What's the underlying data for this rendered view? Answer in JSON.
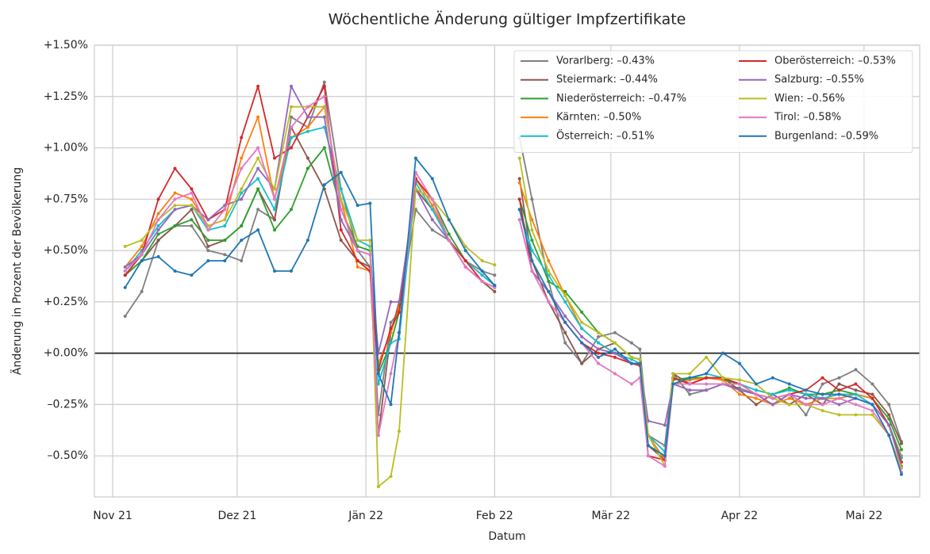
{
  "chart_data": {
    "type": "line",
    "title": "Wöchentliche Änderung gültiger Impfzertifikate",
    "xlabel": "Datum",
    "ylabel": "Änderung in Prozent der Bevölkerung",
    "x": [
      3,
      7,
      11,
      15,
      19,
      23,
      27,
      31,
      35,
      39,
      43,
      47,
      51,
      55,
      59,
      62,
      64,
      67,
      69,
      73,
      77,
      81,
      85,
      89,
      92,
      95,
      98,
      101,
      105,
      109,
      113,
      117,
      121,
      125,
      127,
      129,
      133,
      135,
      139,
      143,
      147,
      151,
      155,
      159,
      163,
      167,
      171,
      175,
      179,
      183,
      187,
      190
    ],
    "xlim": [
      -4.4,
      194.4
    ],
    "xticks": [
      {
        "value": 0,
        "label": "Nov 21"
      },
      {
        "value": 30,
        "label": "Dez 21"
      },
      {
        "value": 61,
        "label": "Jän 22"
      },
      {
        "value": 92,
        "label": "Feb 22"
      },
      {
        "value": 120,
        "label": "Mär 22"
      },
      {
        "value": 151,
        "label": "Apr 22"
      },
      {
        "value": 181,
        "label": "Mai 22"
      }
    ],
    "ylim": [
      -0.7,
      1.5
    ],
    "yticks": [
      {
        "value": -0.5,
        "label": "–0.50%"
      },
      {
        "value": -0.25,
        "label": "–0.25%"
      },
      {
        "value": 0,
        "label": "+0.00%"
      },
      {
        "value": 0.25,
        "label": "+0.25%"
      },
      {
        "value": 0.5,
        "label": "+0.50%"
      },
      {
        "value": 0.75,
        "label": "+0.75%"
      },
      {
        "value": 1,
        "label": "+1.00%"
      },
      {
        "value": 1.25,
        "label": "+1.25%"
      },
      {
        "value": 1.5,
        "label": "+1.50%"
      }
    ],
    "grid": true,
    "legend": "upper right",
    "series": [
      {
        "name": "Vorarlberg: –0.43%",
        "color": "#7f7f7f",
        "values": [
          0.18,
          0.3,
          0.55,
          0.62,
          0.62,
          0.5,
          0.48,
          0.45,
          0.7,
          0.65,
          1.15,
          1.1,
          1.32,
          0.8,
          0.5,
          0.42,
          -0.3,
          0.15,
          0.2,
          0.7,
          0.6,
          0.55,
          0.45,
          0.4,
          0.38,
          null,
          1.05,
          0.75,
          0.35,
          0.05,
          -0.05,
          0.08,
          0.1,
          0.05,
          0.02,
          -0.4,
          -0.45,
          -0.1,
          -0.2,
          -0.18,
          -0.15,
          -0.17,
          -0.2,
          -0.25,
          -0.2,
          -0.3,
          -0.15,
          -0.12,
          -0.08,
          -0.15,
          -0.25,
          -0.43
        ]
      },
      {
        "name": "Steiermark: –0.44%",
        "color": "#8c564b",
        "values": [
          0.38,
          0.45,
          0.55,
          0.62,
          0.7,
          0.52,
          0.55,
          0.62,
          0.8,
          0.65,
          1.1,
          0.95,
          0.8,
          0.55,
          0.45,
          0.42,
          -0.4,
          0.1,
          0.25,
          0.8,
          0.7,
          0.55,
          0.42,
          0.35,
          0.3,
          null,
          0.85,
          0.45,
          0.25,
          0.1,
          -0.05,
          0.02,
          0.05,
          -0.02,
          -0.03,
          -0.45,
          -0.52,
          -0.1,
          -0.15,
          -0.12,
          -0.12,
          -0.18,
          -0.25,
          -0.2,
          -0.25,
          -0.2,
          -0.25,
          -0.15,
          -0.18,
          -0.2,
          -0.3,
          -0.44
        ]
      },
      {
        "name": "Niederösterreich: –0.47%",
        "color": "#2ca02c",
        "values": [
          0.38,
          0.45,
          0.58,
          0.62,
          0.65,
          0.55,
          0.55,
          0.62,
          0.8,
          0.6,
          0.7,
          0.9,
          1.0,
          0.7,
          0.52,
          0.5,
          -0.1,
          0.05,
          0.2,
          0.8,
          0.75,
          0.58,
          0.45,
          0.38,
          0.33,
          null,
          0.75,
          0.55,
          0.35,
          0.3,
          0.2,
          0.1,
          0.05,
          -0.02,
          -0.03,
          -0.45,
          -0.5,
          -0.13,
          -0.12,
          -0.12,
          -0.13,
          -0.15,
          -0.18,
          -0.2,
          -0.17,
          -0.2,
          -0.2,
          -0.18,
          -0.2,
          -0.22,
          -0.32,
          -0.47
        ]
      },
      {
        "name": "Kärnten: –0.50%",
        "color": "#ff7f0e",
        "values": [
          0.42,
          0.52,
          0.68,
          0.78,
          0.75,
          0.62,
          0.65,
          0.95,
          1.15,
          0.75,
          1.05,
          1.1,
          1.2,
          0.75,
          0.42,
          0.4,
          -0.05,
          0.1,
          0.22,
          0.85,
          0.72,
          0.55,
          0.45,
          0.38,
          0.33,
          null,
          0.83,
          0.65,
          0.45,
          0.28,
          0.12,
          0.05,
          0.0,
          -0.05,
          -0.05,
          -0.4,
          -0.52,
          -0.15,
          -0.13,
          -0.12,
          -0.13,
          -0.2,
          -0.22,
          -0.25,
          -0.22,
          -0.25,
          -0.22,
          -0.22,
          -0.2,
          -0.22,
          -0.35,
          -0.5
        ]
      },
      {
        "name": "Österreich: –0.51%",
        "color": "#17becf",
        "values": [
          0.4,
          0.5,
          0.62,
          0.7,
          0.72,
          0.6,
          0.62,
          0.78,
          0.85,
          0.7,
          1.05,
          1.08,
          1.1,
          0.8,
          0.55,
          0.52,
          -0.15,
          0.05,
          0.07,
          0.83,
          0.7,
          0.55,
          0.45,
          0.38,
          0.33,
          null,
          0.7,
          0.5,
          0.38,
          0.25,
          0.12,
          0.05,
          0.0,
          -0.03,
          -0.05,
          -0.4,
          -0.48,
          -0.15,
          -0.12,
          -0.1,
          -0.12,
          -0.15,
          -0.18,
          -0.2,
          -0.18,
          -0.2,
          -0.22,
          -0.2,
          -0.2,
          -0.25,
          -0.35,
          -0.51
        ]
      },
      {
        "name": "Oberösterreich: –0.53%",
        "color": "#d62728",
        "values": [
          0.38,
          0.48,
          0.75,
          0.9,
          0.8,
          0.65,
          0.7,
          1.05,
          1.3,
          0.95,
          1.0,
          1.15,
          1.3,
          0.6,
          0.45,
          0.4,
          -0.08,
          0.12,
          0.2,
          0.85,
          0.75,
          0.55,
          0.45,
          0.35,
          0.32,
          null,
          0.75,
          0.4,
          0.3,
          0.15,
          0.05,
          0.0,
          -0.02,
          -0.05,
          -0.06,
          -0.5,
          -0.52,
          -0.12,
          -0.15,
          -0.12,
          -0.12,
          -0.15,
          -0.2,
          -0.22,
          -0.2,
          -0.18,
          -0.12,
          -0.18,
          -0.15,
          -0.22,
          -0.35,
          -0.53
        ]
      },
      {
        "name": "Salzburg: –0.55%",
        "color": "#9467bd",
        "values": [
          0.42,
          0.48,
          0.6,
          0.7,
          0.72,
          0.65,
          0.72,
          0.75,
          0.9,
          0.8,
          1.3,
          1.15,
          1.15,
          0.65,
          0.5,
          0.48,
          0.0,
          0.25,
          0.25,
          0.8,
          0.65,
          0.55,
          0.42,
          0.35,
          0.32,
          null,
          0.65,
          0.4,
          0.3,
          0.18,
          0.08,
          0.02,
          0.0,
          -0.05,
          -0.05,
          -0.33,
          -0.35,
          -0.15,
          -0.18,
          -0.18,
          -0.15,
          -0.18,
          -0.2,
          -0.25,
          -0.2,
          -0.22,
          -0.22,
          -0.25,
          -0.22,
          -0.25,
          -0.35,
          -0.55
        ]
      },
      {
        "name": "Wien: –0.56%",
        "color": "#bcbd22",
        "values": [
          0.52,
          0.55,
          0.65,
          0.72,
          0.72,
          0.62,
          0.65,
          0.8,
          0.95,
          0.8,
          1.2,
          1.2,
          1.2,
          0.75,
          0.55,
          0.55,
          -0.65,
          -0.6,
          -0.38,
          0.8,
          0.75,
          0.65,
          0.52,
          0.45,
          0.43,
          null,
          0.95,
          0.6,
          0.4,
          0.28,
          0.15,
          0.1,
          0.05,
          -0.02,
          -0.03,
          -0.4,
          -0.55,
          -0.1,
          -0.1,
          -0.02,
          -0.12,
          -0.13,
          -0.15,
          -0.22,
          -0.25,
          -0.25,
          -0.28,
          -0.3,
          -0.3,
          -0.3,
          -0.4,
          -0.56
        ]
      },
      {
        "name": "Tirol: –0.58%",
        "color": "#e377c2",
        "values": [
          0.4,
          0.48,
          0.65,
          0.75,
          0.78,
          0.6,
          0.7,
          0.9,
          1.0,
          0.75,
          1.1,
          1.2,
          1.25,
          0.7,
          0.5,
          0.48,
          -0.4,
          -0.1,
          0.1,
          0.88,
          0.75,
          0.55,
          0.42,
          0.35,
          0.32,
          null,
          0.65,
          0.4,
          0.25,
          0.15,
          0.05,
          -0.05,
          -0.1,
          -0.15,
          -0.12,
          -0.5,
          -0.55,
          -0.15,
          -0.15,
          -0.15,
          -0.15,
          -0.15,
          -0.2,
          -0.22,
          -0.2,
          -0.25,
          -0.25,
          -0.22,
          -0.25,
          -0.28,
          -0.4,
          -0.58
        ]
      },
      {
        "name": "Burgenland: –0.59%",
        "color": "#1f77b4",
        "values": [
          0.32,
          0.45,
          0.47,
          0.4,
          0.38,
          0.45,
          0.45,
          0.55,
          0.6,
          0.4,
          0.4,
          0.55,
          0.82,
          0.88,
          0.72,
          0.73,
          -0.1,
          -0.25,
          0.1,
          0.95,
          0.85,
          0.65,
          0.5,
          0.4,
          0.33,
          null,
          0.7,
          0.45,
          0.3,
          0.15,
          0.05,
          -0.02,
          0.02,
          -0.05,
          -0.05,
          -0.45,
          -0.5,
          -0.15,
          -0.12,
          -0.1,
          0.0,
          -0.05,
          -0.15,
          -0.12,
          -0.15,
          -0.18,
          -0.2,
          -0.2,
          -0.22,
          -0.25,
          -0.4,
          -0.59
        ]
      }
    ]
  }
}
